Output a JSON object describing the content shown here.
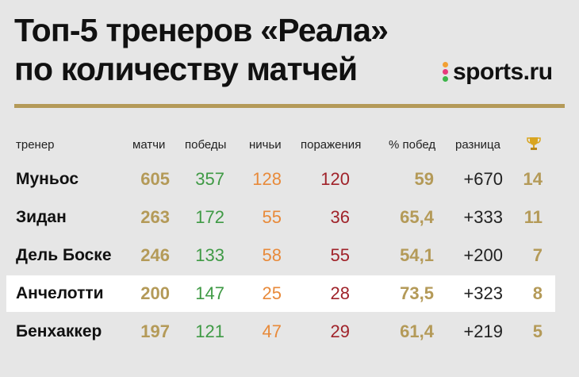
{
  "title_line1": "Топ-5 тренеров «Реала»",
  "title_line2": "по количеству матчей",
  "logo_text": "sports.ru",
  "colors": {
    "gold": "#b49a58",
    "green": "#3f9a45",
    "orange": "#e88a3a",
    "red": "#a0232a",
    "background": "#e6e6e6"
  },
  "chart_data": {
    "type": "table",
    "title": "Топ-5 тренеров «Реала» по количеству матчей",
    "columns": [
      "тренер",
      "матчи",
      "победы",
      "ничьи",
      "поражения",
      "% побед",
      "разница",
      "trophy-icon"
    ],
    "rows": [
      {
        "name": "Муньос",
        "matches": "605",
        "wins": "357",
        "draws": "128",
        "losses": "120",
        "win_pct": "59",
        "diff": "+670",
        "trophies": "14"
      },
      {
        "name": "Зидан",
        "matches": "263",
        "wins": "172",
        "draws": "55",
        "losses": "36",
        "win_pct": "65,4",
        "diff": "+333",
        "trophies": "11"
      },
      {
        "name": "Дель Боске",
        "matches": "246",
        "wins": "133",
        "draws": "58",
        "losses": "55",
        "win_pct": "54,1",
        "diff": "+200",
        "trophies": "7"
      },
      {
        "name": "Анчелотти",
        "matches": "200",
        "wins": "147",
        "draws": "25",
        "losses": "28",
        "win_pct": "73,5",
        "diff": "+323",
        "trophies": "8"
      },
      {
        "name": "Бенхаккер",
        "matches": "197",
        "wins": "121",
        "draws": "47",
        "losses": "29",
        "win_pct": "61,4",
        "diff": "+219",
        "trophies": "5"
      }
    ],
    "highlighted_row": 3
  }
}
